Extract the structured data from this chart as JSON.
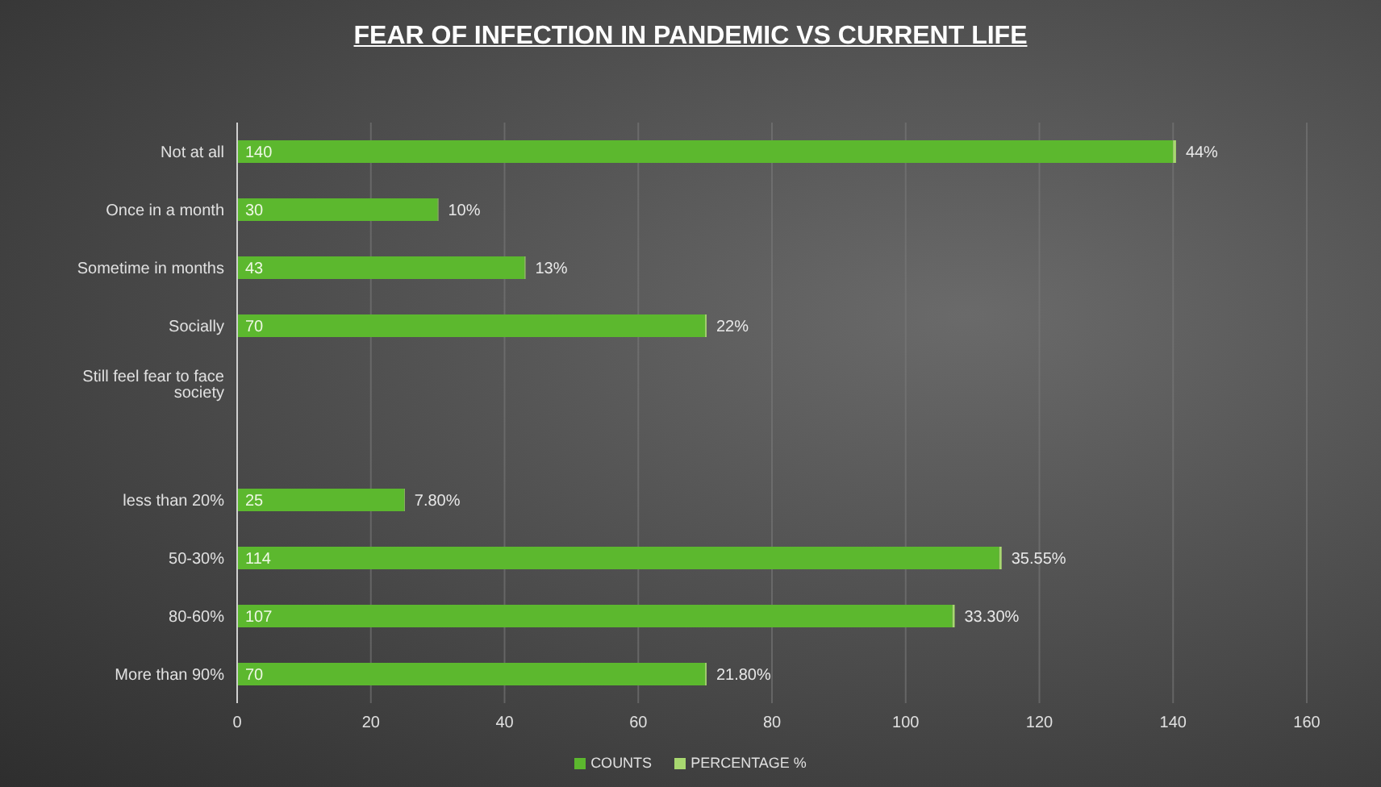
{
  "chart_data": {
    "type": "bar",
    "orientation": "horizontal",
    "stacked": true,
    "title": "FEAR OF INFECTION IN PANDEMIC VS CURRENT LIFE",
    "categories": [
      "Not at all",
      "Once in a month",
      "Sometime in months",
      "Socially",
      "Still feel fear to face society",
      null,
      "less than 20%",
      "50-30%",
      "80-60%",
      "More than 90%"
    ],
    "series": [
      {
        "name": "COUNTS",
        "color": "#5cb82e",
        "values": [
          140,
          30,
          43,
          70,
          null,
          null,
          25,
          114,
          107,
          70
        ],
        "value_labels": [
          "140",
          "30",
          "43",
          "70",
          null,
          null,
          "25",
          "114",
          "107",
          "70"
        ]
      },
      {
        "name": "PERCENTAGE %",
        "color": "#a8d870",
        "values": [
          0.44,
          0.1,
          0.13,
          0.22,
          null,
          null,
          0.078,
          0.3555,
          0.333,
          0.218
        ],
        "value_labels": [
          "44%",
          "10%",
          "13%",
          "22%",
          null,
          null,
          "7.80%",
          "35.55%",
          "33.30%",
          "21.80%"
        ]
      }
    ],
    "xlim": [
      0,
      160
    ],
    "xticks": [
      0,
      20,
      40,
      60,
      80,
      100,
      120,
      140,
      160
    ],
    "grid": "x",
    "legend": "bottom"
  }
}
